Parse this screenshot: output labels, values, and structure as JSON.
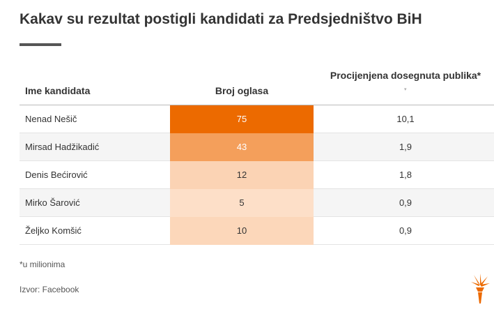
{
  "title": "Kakav su rezultat postigli kandidati za Predsjedništvo BiH",
  "chart_data": {
    "type": "table",
    "columns": [
      "Ime kandidata",
      "Broj oglasa",
      "Procijenjena dosegnuta publika*"
    ],
    "rows": [
      {
        "name": "Nenad Nešič",
        "ads": 75,
        "ads_label": "75",
        "audience": "10,1"
      },
      {
        "name": "Mirsad Hadžikadić",
        "ads": 43,
        "ads_label": "43",
        "audience": "1,9"
      },
      {
        "name": "Denis Bećirović",
        "ads": 12,
        "ads_label": "12",
        "audience": "1,8"
      },
      {
        "name": "Mirko Šarović",
        "ads": 5,
        "ads_label": "5",
        "audience": "0,9"
      },
      {
        "name": "Željko Komšić",
        "ads": 10,
        "ads_label": "10",
        "audience": "0,9"
      }
    ],
    "heat_scale": {
      "min": 5,
      "max": 75,
      "low_color": "#fddfc8",
      "high_color": "#ec6a00"
    }
  },
  "sort_indicator": "▾",
  "footnote": "*u milionima",
  "source": "Izvor: Facebook",
  "logo": "rferl-logo-icon",
  "colors": {
    "accent": "#ec6a00",
    "text": "#333333"
  }
}
